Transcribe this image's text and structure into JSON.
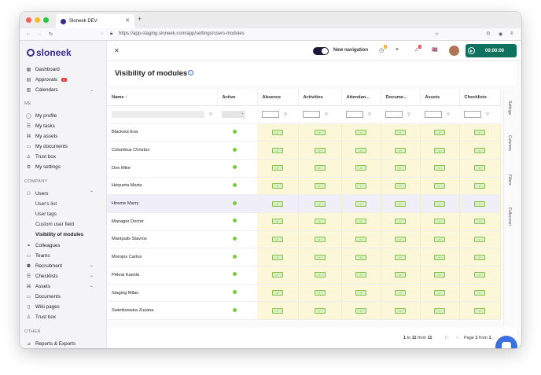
{
  "browser": {
    "tab_title": "Sloneek DEV",
    "url": "https://app-staging.sloneek.com/app/settings/users-modules"
  },
  "sidebar": {
    "logo": "sloneek",
    "top_items": [
      {
        "label": "Dashboard",
        "icon": "dashboard-icon"
      },
      {
        "label": "Approvals",
        "icon": "approvals-icon",
        "badge": "4"
      },
      {
        "label": "Calendars",
        "icon": "calendar-icon"
      }
    ],
    "me_section": "ME",
    "me_items": [
      {
        "label": "My profile",
        "icon": "user-icon"
      },
      {
        "label": "My tasks",
        "icon": "tasks-icon"
      },
      {
        "label": "My assets",
        "icon": "assets-icon"
      },
      {
        "label": "My documents",
        "icon": "folder-icon"
      },
      {
        "label": "Trust box",
        "icon": "trust-box-icon"
      },
      {
        "label": "My settings",
        "icon": "gear-icon"
      }
    ],
    "company_section": "COMPANY",
    "users_label": "Users",
    "users_sub": [
      "User's list",
      "User tags",
      "Custom user field",
      "Visibility of modules"
    ],
    "company_items": [
      {
        "label": "Colleagues",
        "icon": "colleagues-icon"
      },
      {
        "label": "Teams",
        "icon": "teams-icon"
      },
      {
        "label": "Recruitment",
        "icon": "recruitment-icon"
      },
      {
        "label": "Checklists",
        "icon": "checklist-icon"
      },
      {
        "label": "Assets",
        "icon": "assets-icon"
      },
      {
        "label": "Documents",
        "icon": "folder-icon"
      },
      {
        "label": "Wiki pages",
        "icon": "book-icon"
      },
      {
        "label": "Trust box",
        "icon": "trust-box-icon"
      }
    ],
    "other_section": "OTHER",
    "other_items": [
      {
        "label": "Reports & Exports",
        "icon": "chart-icon"
      }
    ]
  },
  "topbar": {
    "new_navigation": "New navigation",
    "notif_count": "1",
    "alert_count": "3",
    "timer": "00:00:00"
  },
  "page": {
    "title": "Visibility of modules"
  },
  "table": {
    "columns": [
      "Name ↑",
      "Active",
      "Absence",
      "Activities",
      "Attendan...",
      "Docume...",
      "Assets",
      "Checklists"
    ],
    "rows": [
      "Blackout Eva",
      "Columbus Christos",
      "Doe Mike",
      "Herparta Marta",
      "Hireme Marry",
      "Manager Doctor",
      "Manipulis Stavros",
      "Morojos Carlos",
      "Pěkná Kamila",
      "Staging Milan",
      "Swietkowska Zuzana"
    ]
  },
  "side_tabs": [
    "Settings",
    "Columns",
    "Filters",
    "Fullscreen"
  ],
  "footer": {
    "range_start": "1",
    "range_end": "11",
    "range_total": "11",
    "page_current": "1",
    "page_total": "1"
  },
  "colors": {
    "brand": "#3b2a8f",
    "timer": "#10715e",
    "module_cell": "#fdf7da",
    "active_dot": "#7ac943",
    "chat": "#3c6fe0"
  }
}
